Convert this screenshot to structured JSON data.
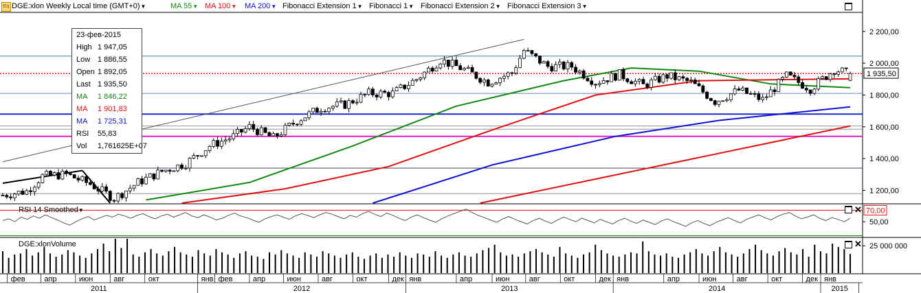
{
  "toolbar": {
    "icon": "eq-icon",
    "symbol_label": "DGE:xlon Weekly Local time (GMT+0)",
    "indicators": [
      {
        "label": "MA 55",
        "color": "#118811"
      },
      {
        "label": "MA 100",
        "color": "#e01010"
      },
      {
        "label": "MA 200",
        "color": "#1010d0"
      },
      {
        "label": "Fibonacci Extension 1",
        "color": "#000000"
      },
      {
        "label": "Fibonacci 1",
        "color": "#000000"
      },
      {
        "label": "Fibonacci Extension 2",
        "color": "#000000"
      },
      {
        "label": "Fibonacci Extension 3",
        "color": "#000000"
      }
    ]
  },
  "infobox": {
    "date": "23-фев-2015",
    "rows": [
      {
        "k": "High",
        "v": "1 947,05",
        "color": "#000000"
      },
      {
        "k": "Low",
        "v": "1 886,55",
        "color": "#000000"
      },
      {
        "k": "Open",
        "v": "1 892,05",
        "color": "#000000"
      },
      {
        "k": "Last",
        "v": "1 935,50",
        "color": "#000000"
      },
      {
        "k": "MA",
        "v": "1 846,22",
        "color": "#118811"
      },
      {
        "k": "MA",
        "v": "1 901,83",
        "color": "#e01010"
      },
      {
        "k": "MA",
        "v": "1 725,31",
        "color": "#1010d0"
      },
      {
        "k": "RSI",
        "v": "55,83",
        "color": "#000000"
      },
      {
        "k": "Vol",
        "v": "1,761625E+07",
        "color": "#000000"
      }
    ]
  },
  "price_tag": "1 935,50",
  "rsi_tag": "70,00",
  "rsi_title": "RSI 14 Smoothed",
  "volume_title": "DGE:xlonVolume",
  "colors": {
    "ma55": "#118811",
    "ma100": "#e01010",
    "ma200": "#1010d0",
    "fib_magenta": "#e020c0",
    "fib_blue": "#1a2ad0"
  },
  "chart_data": [
    {
      "type": "candlestick",
      "title": "DGE:xlon Weekly",
      "y_axis_side": "right",
      "ylim": [
        1120,
        2320
      ],
      "y_ticks": [
        1200,
        1400,
        1600,
        1800,
        2000,
        2200
      ],
      "y_tick_labels": [
        "1 200,00",
        "1 400,00",
        "1 600,00",
        "1 800,00",
        "2 000,00",
        "2 200,00"
      ],
      "grid": false,
      "x_start": "2011-01-24",
      "x_end": "2015-02-23",
      "last": {
        "date": "2015-02-23",
        "open": 1892.05,
        "high": 1947.05,
        "low": 1886.55,
        "close": 1935.5
      },
      "close_points": [
        [
          "2011-01-24",
          1170
        ],
        [
          "2011-03-07",
          1195
        ],
        [
          "2011-04-04",
          1290
        ],
        [
          "2011-05-16",
          1300
        ],
        [
          "2011-06-27",
          1240
        ],
        [
          "2011-08-08",
          1150
        ],
        [
          "2011-09-19",
          1250
        ],
        [
          "2011-10-31",
          1320
        ],
        [
          "2011-12-12",
          1370
        ],
        [
          "2012-01-23",
          1480
        ],
        [
          "2012-03-05",
          1540
        ],
        [
          "2012-04-02",
          1600
        ],
        [
          "2012-05-14",
          1530
        ],
        [
          "2012-06-25",
          1640
        ],
        [
          "2012-08-06",
          1720
        ],
        [
          "2012-09-17",
          1740
        ],
        [
          "2012-10-29",
          1810
        ],
        [
          "2012-12-10",
          1810
        ],
        [
          "2013-01-21",
          1900
        ],
        [
          "2013-03-04",
          2020
        ],
        [
          "2013-04-15",
          1960
        ],
        [
          "2013-05-27",
          1880
        ],
        [
          "2013-07-08",
          1940
        ],
        [
          "2013-07-29",
          2080
        ],
        [
          "2013-09-09",
          1980
        ],
        [
          "2013-10-21",
          1980
        ],
        [
          "2013-12-02",
          1880
        ],
        [
          "2014-01-13",
          1930
        ],
        [
          "2014-02-24",
          1860
        ],
        [
          "2014-04-07",
          1920
        ],
        [
          "2014-05-19",
          1880
        ],
        [
          "2014-06-30",
          1760
        ],
        [
          "2014-08-11",
          1830
        ],
        [
          "2014-09-22",
          1770
        ],
        [
          "2014-11-03",
          1920
        ],
        [
          "2014-12-15",
          1840
        ],
        [
          "2015-01-26",
          1960
        ],
        [
          "2015-02-23",
          1935.5
        ]
      ],
      "ma55_points": [
        [
          "2011-10-03",
          1140
        ],
        [
          "2012-04-02",
          1250
        ],
        [
          "2012-10-01",
          1480
        ],
        [
          "2013-04-01",
          1730
        ],
        [
          "2013-10-07",
          1890
        ],
        [
          "2014-02-03",
          1970
        ],
        [
          "2014-06-02",
          1950
        ],
        [
          "2014-10-06",
          1870
        ],
        [
          "2015-02-23",
          1846.22
        ]
      ],
      "ma100_points": [
        [
          "2011-12-05",
          1120
        ],
        [
          "2012-06-04",
          1210
        ],
        [
          "2012-12-03",
          1350
        ],
        [
          "2013-06-03",
          1580
        ],
        [
          "2013-12-02",
          1800
        ],
        [
          "2014-06-02",
          1890
        ],
        [
          "2015-02-23",
          1901.83
        ]
      ],
      "ma200_points": [
        [
          "2012-11-05",
          1120
        ],
        [
          "2013-06-03",
          1360
        ],
        [
          "2014-01-06",
          1540
        ],
        [
          "2014-07-07",
          1640
        ],
        [
          "2015-02-23",
          1725.31
        ]
      ],
      "trend_lines": [
        {
          "from": [
            "2011-01-24",
            1380
          ],
          "to": [
            "2013-07-29",
            2150
          ],
          "color": "#555555"
        },
        {
          "from": [
            "2011-01-24",
            1245
          ],
          "to": [
            "2011-06-13",
            1325
          ],
          "color": "#000000"
        },
        {
          "from": [
            "2011-06-13",
            1325
          ],
          "to": [
            "2011-08-01",
            1120
          ],
          "color": "#000000"
        },
        {
          "from": [
            "2013-05-13",
            1120
          ],
          "to": [
            "2015-02-23",
            1605
          ],
          "color": "#e01010"
        }
      ],
      "horizontal_levels": [
        {
          "y": 2045,
          "color": "#3a8a8a"
        },
        {
          "y": 1935.5,
          "color": "#e01010",
          "style": "dotted"
        },
        {
          "y": 1810,
          "color": "#6080c0"
        },
        {
          "y": 1680,
          "color": "#1a2ad0"
        },
        {
          "y": 1605,
          "color": "#9090a0"
        },
        {
          "y": 1585,
          "color": "#9090a0"
        },
        {
          "y": 1540,
          "color": "#e020c0"
        },
        {
          "y": 1340,
          "color": "#404060"
        },
        {
          "y": 1180,
          "color": "#9090a0"
        }
      ]
    },
    {
      "type": "line",
      "title": "RSI 14 Smoothed",
      "ylim": [
        25,
        80
      ],
      "y_ticks": [
        50
      ],
      "y_tick_labels": [
        "50,00"
      ],
      "reference_line": 70,
      "values": [
        52,
        55,
        50,
        58,
        54,
        60,
        56,
        62,
        57,
        53,
        48,
        44,
        50,
        55,
        59,
        53,
        57,
        61,
        58,
        63,
        60,
        56,
        61,
        64,
        59,
        55,
        60,
        63,
        58,
        62,
        66,
        60,
        57,
        62,
        58,
        53,
        56,
        61,
        65,
        60,
        57,
        53,
        49,
        55,
        59,
        62,
        58,
        54,
        60,
        64,
        61,
        57,
        62,
        66,
        63,
        59,
        55,
        61,
        58,
        64,
        68,
        63,
        59,
        65,
        61,
        56,
        52,
        58,
        62,
        57,
        53,
        49,
        55,
        60,
        64,
        68,
        72,
        66,
        61,
        57,
        53,
        49,
        55,
        59,
        54,
        50,
        46,
        52,
        56,
        51,
        47,
        53,
        58,
        54,
        50,
        56,
        52,
        48,
        54,
        50,
        46,
        52,
        56,
        51,
        47,
        53,
        49,
        45,
        51,
        55,
        50,
        46,
        42,
        48,
        52,
        47,
        43,
        49,
        53,
        57,
        52,
        48,
        54,
        58,
        62,
        57,
        53,
        59,
        63,
        66,
        60,
        55,
        58,
        62,
        56,
        52,
        57,
        54,
        50,
        55.83
      ]
    },
    {
      "type": "bar",
      "title": "DGE:xlonVolume",
      "y_ticks": [
        25000000
      ],
      "y_tick_labels": [
        "25 000 000"
      ],
      "ylim": [
        0,
        32000000
      ],
      "last_value": 17616250,
      "values": [
        20,
        14,
        17,
        18,
        22,
        16,
        19,
        24,
        18,
        15,
        17,
        21,
        19,
        16,
        14,
        18,
        22,
        27,
        20,
        33,
        23,
        32,
        17,
        15,
        19,
        22,
        18,
        16,
        20,
        24,
        19,
        17,
        15,
        21,
        18,
        16,
        22,
        19,
        17,
        14,
        18,
        20,
        16,
        15,
        13,
        19,
        17,
        21,
        18,
        16,
        14,
        19,
        17,
        15,
        20,
        18,
        16,
        14,
        17,
        19,
        15,
        13,
        16,
        18,
        14,
        17,
        15,
        19,
        16,
        14,
        18,
        17,
        15,
        20,
        16,
        14,
        17,
        19,
        16,
        15,
        18,
        21,
        23,
        26,
        19,
        16,
        17,
        15,
        18,
        20,
        22,
        19,
        17,
        15,
        24,
        18,
        16,
        14,
        17,
        19,
        26,
        21,
        18,
        16,
        15,
        17,
        19,
        18,
        29,
        20,
        17,
        16,
        18,
        15,
        14,
        17,
        19,
        22,
        18,
        16,
        20,
        24,
        19,
        17,
        15,
        18,
        22,
        26,
        21,
        18,
        16,
        20,
        23,
        19,
        17,
        22,
        15,
        26,
        20,
        18,
        27,
        24,
        22,
        17.6
      ]
    }
  ],
  "x_axis": {
    "months": [
      "фев",
      "апр",
      "июн",
      "авг",
      "окт",
      "янв",
      "фев",
      "апр",
      "июн",
      "авг",
      "окт",
      "дек",
      "янв",
      "апр",
      "июн",
      "авг",
      "окт",
      "дек",
      "янв",
      "апр",
      "июн",
      "авг",
      "окт",
      "дек",
      "янв"
    ],
    "years": [
      "2011",
      "2012",
      "2013",
      "2014",
      "2015"
    ]
  }
}
